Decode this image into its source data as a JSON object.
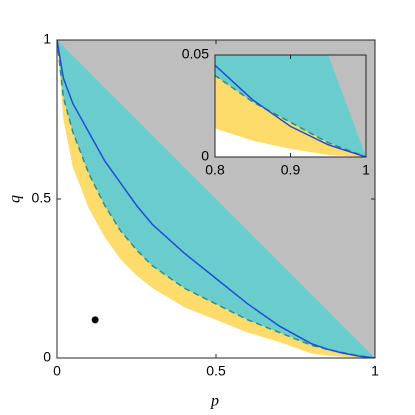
{
  "chart_data": {
    "type": "area",
    "xlabel": "p",
    "ylabel": "q",
    "xlim": [
      0,
      1
    ],
    "ylim": [
      0,
      1
    ],
    "xticks": [
      0,
      0.5,
      1
    ],
    "yticks": [
      0,
      0.5,
      1
    ],
    "background": "#bebebe",
    "x": [
      0,
      0.02,
      0.05,
      0.1,
      0.15,
      0.2,
      0.25,
      0.3,
      0.4,
      0.5,
      0.6,
      0.7,
      0.8,
      0.85,
      0.9,
      0.95,
      1
    ],
    "series": [
      {
        "values": [
          1,
          0.98,
          0.95,
          0.9,
          0.85,
          0.8,
          0.75,
          0.7,
          0.6,
          0.5,
          0.4,
          0.3,
          0.2,
          0.15,
          0.1,
          0.05,
          0
        ],
        "fill": "#69cdcd"
      },
      {
        "values": [
          1,
          0.82,
          0.71,
          0.58,
          0.48,
          0.4,
          0.34,
          0.29,
          0.22,
          0.17,
          0.12,
          0.08,
          0.04,
          0.027,
          0.017,
          0.007,
          0
        ],
        "fill": "#fedc6b",
        "color": "#2c8f8c",
        "dash": true
      },
      {
        "values": [
          1,
          0.75,
          0.6,
          0.47,
          0.38,
          0.31,
          0.26,
          0.22,
          0.16,
          0.12,
          0.08,
          0.05,
          0.014,
          0.008,
          0.004,
          0.001,
          0
        ],
        "fill": "#ffffff"
      },
      {
        "values": [
          1,
          0.88,
          0.8,
          0.71,
          0.62,
          0.55,
          0.48,
          0.42,
          0.33,
          0.25,
          0.17,
          0.1,
          0.045,
          0.028,
          0.015,
          0.006,
          0
        ],
        "color": "#1d4fd8"
      }
    ],
    "points": [
      {
        "x": 0.12,
        "y": 0.12,
        "color": "#000000"
      }
    ],
    "inset": {
      "xlim": [
        0.8,
        1
      ],
      "ylim": [
        0,
        0.05
      ],
      "xticks": [
        0.8,
        0.9,
        1
      ],
      "yticks": [
        0,
        0.05
      ]
    }
  }
}
